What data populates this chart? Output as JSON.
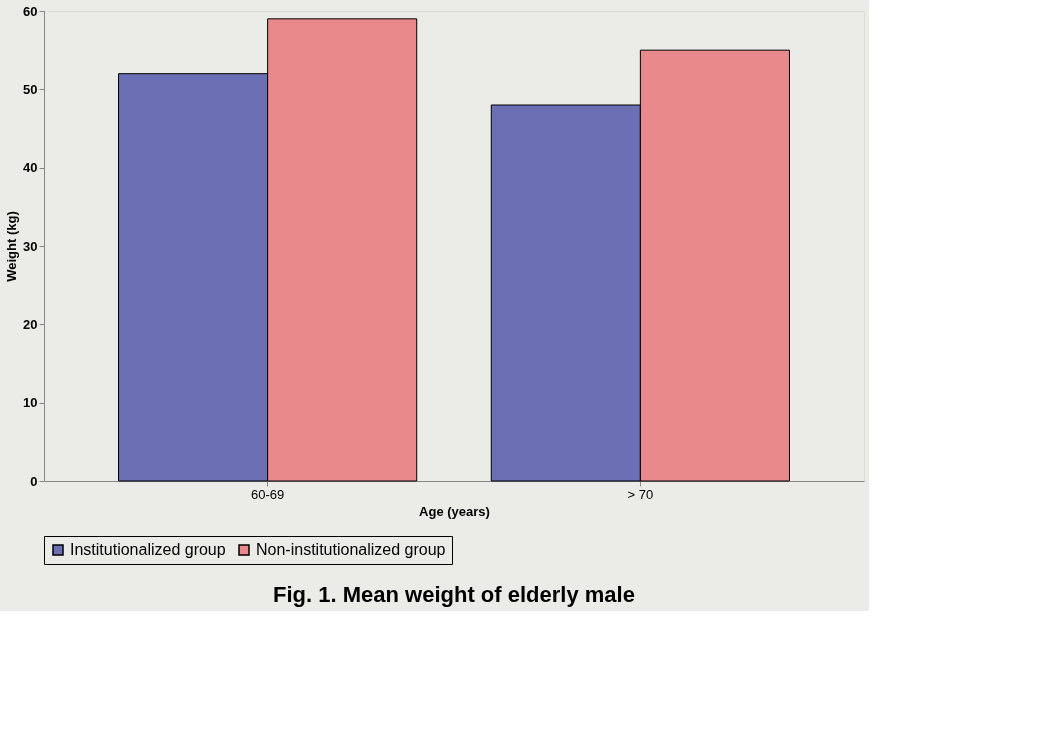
{
  "chart_data": {
    "type": "bar",
    "title": "Fig. 1. Mean weight of elderly male",
    "xlabel": "Age (years)",
    "ylabel": "Weight (kg)",
    "categories": [
      "60-69",
      "> 70"
    ],
    "series": [
      {
        "name": "Institutionalized group",
        "color": "#6b70b4",
        "values": [
          52,
          48
        ]
      },
      {
        "name": "Non-institutionalized group",
        "color": "#e8898c",
        "values": [
          59,
          55
        ]
      }
    ],
    "ylim": [
      0,
      60
    ],
    "yticks": [
      0,
      10,
      20,
      30,
      40,
      50,
      60
    ],
    "grid": false,
    "legend": "bottom"
  }
}
